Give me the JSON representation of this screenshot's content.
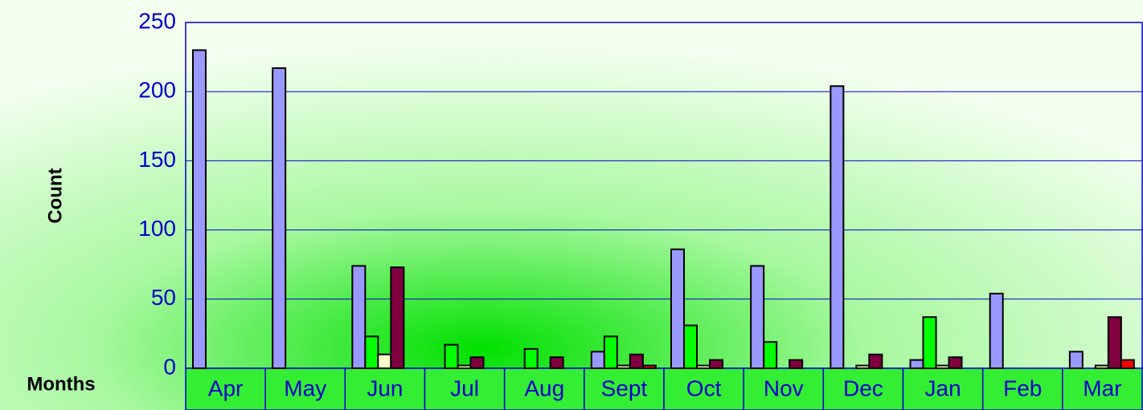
{
  "chart_data": {
    "type": "bar",
    "y_label": "Count",
    "x_label": "Months",
    "categories": [
      "Apr",
      "May",
      "Jun",
      "Jul",
      "Aug",
      "Sept",
      "Oct",
      "Nov",
      "Dec",
      "Jan",
      "Feb",
      "Mar"
    ],
    "series": [
      {
        "color": "#9999ff",
        "values": [
          230,
          217,
          74,
          0,
          0,
          12,
          86,
          74,
          204,
          6,
          54,
          12
        ]
      },
      {
        "color": "#00ff00",
        "values": [
          0,
          0,
          23,
          17,
          14,
          23,
          31,
          19,
          0,
          37,
          0,
          0
        ]
      },
      {
        "color": "#ffffcc",
        "values": [
          0,
          0,
          10,
          2,
          0,
          2,
          2,
          0,
          2,
          2,
          0,
          2
        ]
      },
      {
        "color": "#800040",
        "values": [
          0,
          0,
          73,
          8,
          8,
          10,
          6,
          6,
          10,
          8,
          0,
          37
        ]
      },
      {
        "color": "#ff0000",
        "values": [
          0,
          0,
          0,
          0,
          0,
          2,
          0,
          0,
          0,
          0,
          0,
          6
        ]
      }
    ],
    "ylim": [
      0,
      250
    ],
    "yticks": [
      0,
      50,
      100,
      150,
      200,
      250
    ],
    "grid": true
  }
}
